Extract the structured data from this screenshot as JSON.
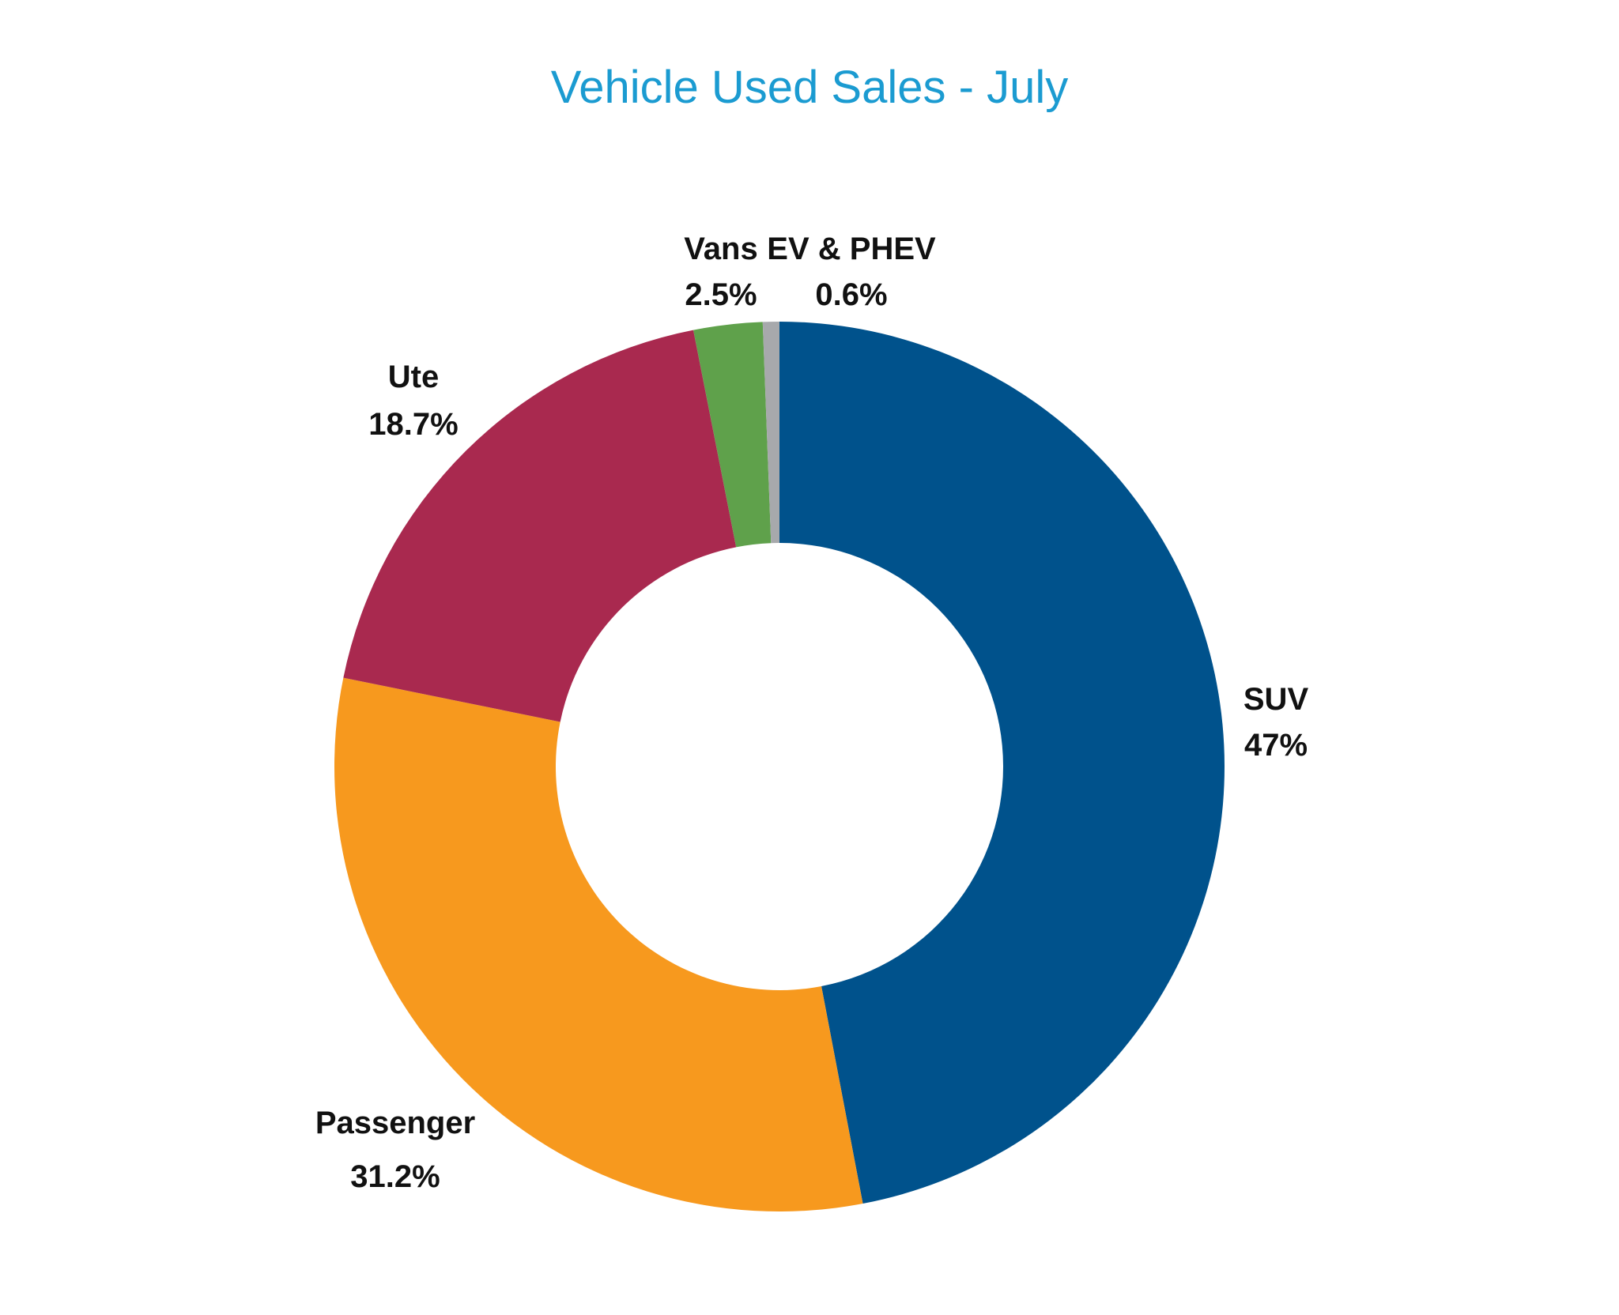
{
  "chart_data": {
    "type": "pie",
    "variant": "donut",
    "title": "Vehicle Used Sales - July",
    "title_color": "#1b9bd1",
    "start_angle_deg": 0,
    "direction": "clockwise",
    "slices": [
      {
        "label": "SUV",
        "value": 47,
        "value_label": "47%",
        "color": "#00528c"
      },
      {
        "label": "Passenger",
        "value": 31.2,
        "value_label": "31.2%",
        "color": "#f7991e"
      },
      {
        "label": "Ute",
        "value": 18.7,
        "value_label": "18.7%",
        "color": "#a9294f"
      },
      {
        "label": "Vans",
        "value": 2.5,
        "value_label": "2.5%",
        "color": "#5fa14b"
      },
      {
        "label": "EV & PHEV",
        "value": 0.6,
        "value_label": "0.6%",
        "color": "#a7a9ac"
      }
    ],
    "legend": "none"
  }
}
